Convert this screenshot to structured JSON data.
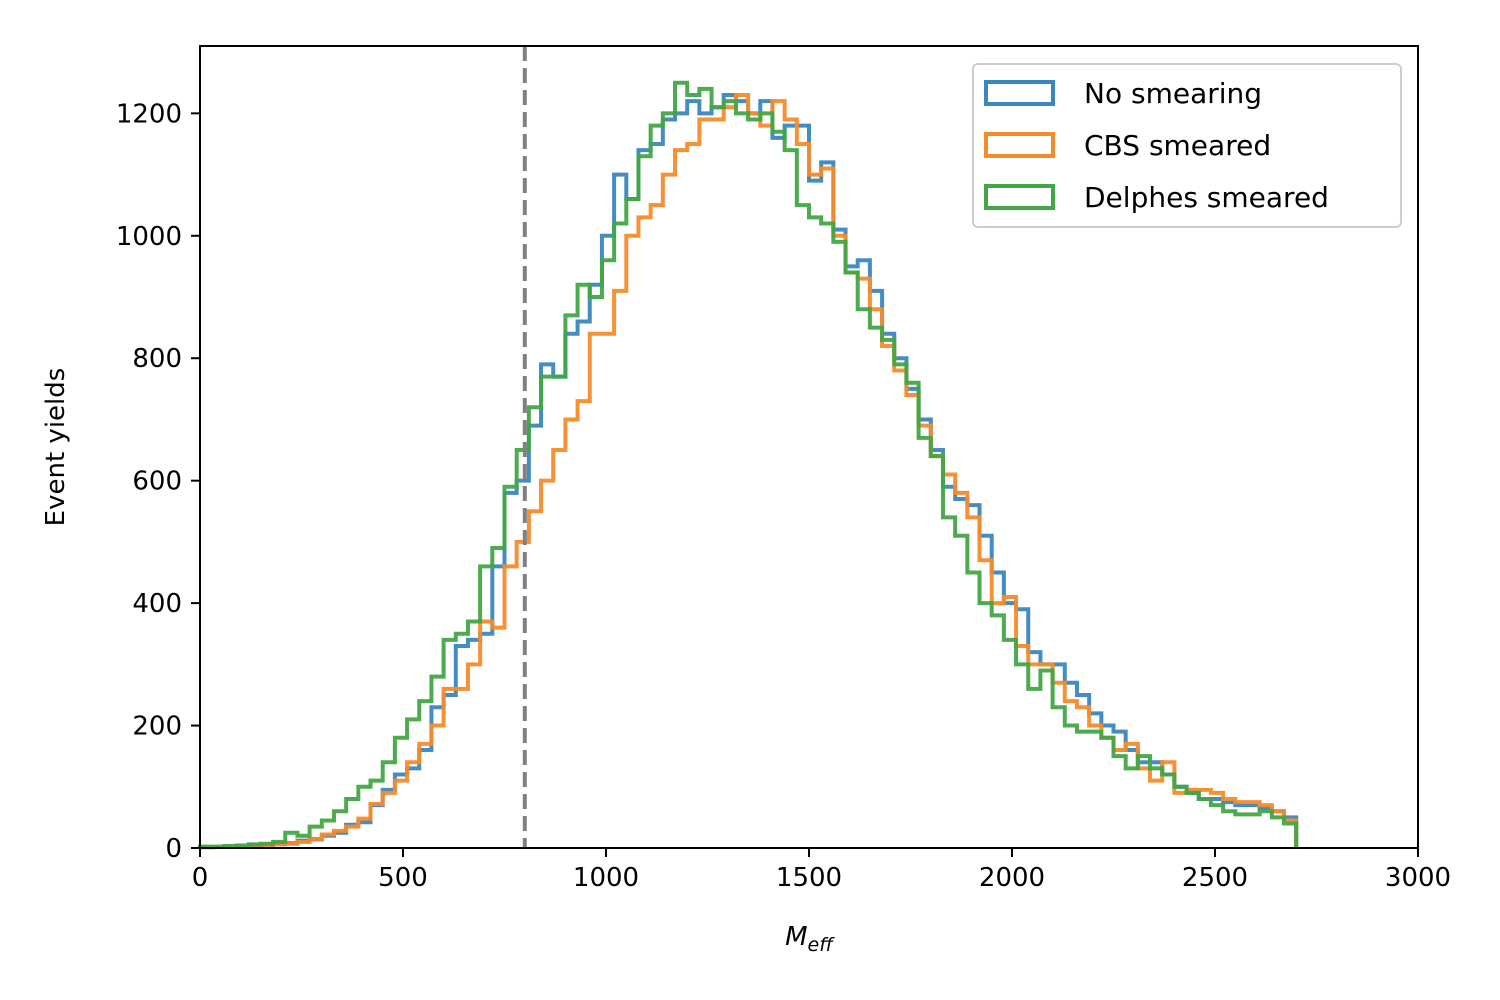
{
  "chart_data": {
    "type": "histogram",
    "xlabel_main": "M",
    "xlabel_sub": "eff",
    "ylabel": "Event yields",
    "xlim": [
      0,
      3000
    ],
    "ylim": [
      0,
      1310
    ],
    "xticks": [
      "0",
      "500",
      "1000",
      "1500",
      "2000",
      "2500",
      "3000"
    ],
    "yticks": [
      "0",
      "200",
      "400",
      "600",
      "800",
      "1000",
      "1200"
    ],
    "xtick_values": [
      0,
      500,
      1000,
      1500,
      2000,
      2500,
      3000
    ],
    "ytick_values": [
      0,
      200,
      400,
      600,
      800,
      1000,
      1200
    ],
    "grid": false,
    "legend_position": "top-right",
    "cut_line": {
      "x": 800,
      "style": "dashed",
      "color": "#808080"
    },
    "bin_width": 30,
    "series": [
      {
        "name": "No smearing",
        "color": "#3a87c0",
        "values": [
          2,
          2,
          3,
          4,
          5,
          6,
          7,
          8,
          12,
          14,
          20,
          25,
          38,
          42,
          70,
          95,
          120,
          130,
          160,
          230,
          250,
          330,
          340,
          350,
          460,
          580,
          600,
          690,
          790,
          770,
          840,
          860,
          920,
          1000,
          1100,
          1060,
          1140,
          1150,
          1190,
          1200,
          1220,
          1200,
          1210,
          1230,
          1220,
          1200,
          1220,
          1160,
          1180,
          1180,
          1090,
          1120,
          1010,
          950,
          960,
          910,
          840,
          800,
          750,
          700,
          650,
          590,
          570,
          560,
          510,
          450,
          400,
          390,
          320,
          300,
          300,
          270,
          250,
          220,
          200,
          190,
          160,
          140,
          140,
          120,
          100,
          90,
          80,
          80,
          75,
          70,
          70,
          65,
          60,
          50
        ]
      },
      {
        "name": "CBS smeared",
        "color": "#f68b2b",
        "values": [
          1,
          2,
          3,
          3,
          5,
          5,
          6,
          7,
          10,
          15,
          22,
          28,
          35,
          48,
          72,
          90,
          110,
          140,
          170,
          200,
          260,
          260,
          300,
          370,
          360,
          460,
          500,
          550,
          600,
          650,
          700,
          730,
          840,
          840,
          910,
          1000,
          1030,
          1050,
          1100,
          1140,
          1150,
          1190,
          1190,
          1210,
          1230,
          1200,
          1180,
          1220,
          1190,
          1150,
          1100,
          1110,
          1000,
          940,
          930,
          880,
          820,
          780,
          740,
          690,
          640,
          610,
          580,
          540,
          470,
          400,
          410,
          330,
          300,
          300,
          270,
          240,
          230,
          200,
          180,
          160,
          170,
          130,
          110,
          140,
          90,
          95,
          95,
          90,
          80,
          75,
          75,
          70,
          60,
          45
        ]
      },
      {
        "name": "Delphes smeared",
        "color": "#42a645",
        "values": [
          2,
          2,
          3,
          4,
          6,
          7,
          10,
          25,
          20,
          35,
          45,
          60,
          80,
          100,
          110,
          140,
          180,
          210,
          240,
          280,
          340,
          350,
          370,
          460,
          490,
          590,
          650,
          720,
          770,
          770,
          870,
          920,
          900,
          960,
          1020,
          1060,
          1130,
          1180,
          1200,
          1250,
          1230,
          1240,
          1210,
          1220,
          1200,
          1190,
          1200,
          1170,
          1140,
          1050,
          1030,
          1020,
          990,
          940,
          880,
          850,
          830,
          790,
          760,
          670,
          640,
          540,
          510,
          450,
          400,
          380,
          340,
          300,
          260,
          290,
          230,
          200,
          190,
          190,
          180,
          150,
          130,
          150,
          130,
          120,
          100,
          90,
          80,
          70,
          60,
          55,
          55,
          60,
          50,
          40
        ]
      }
    ]
  }
}
